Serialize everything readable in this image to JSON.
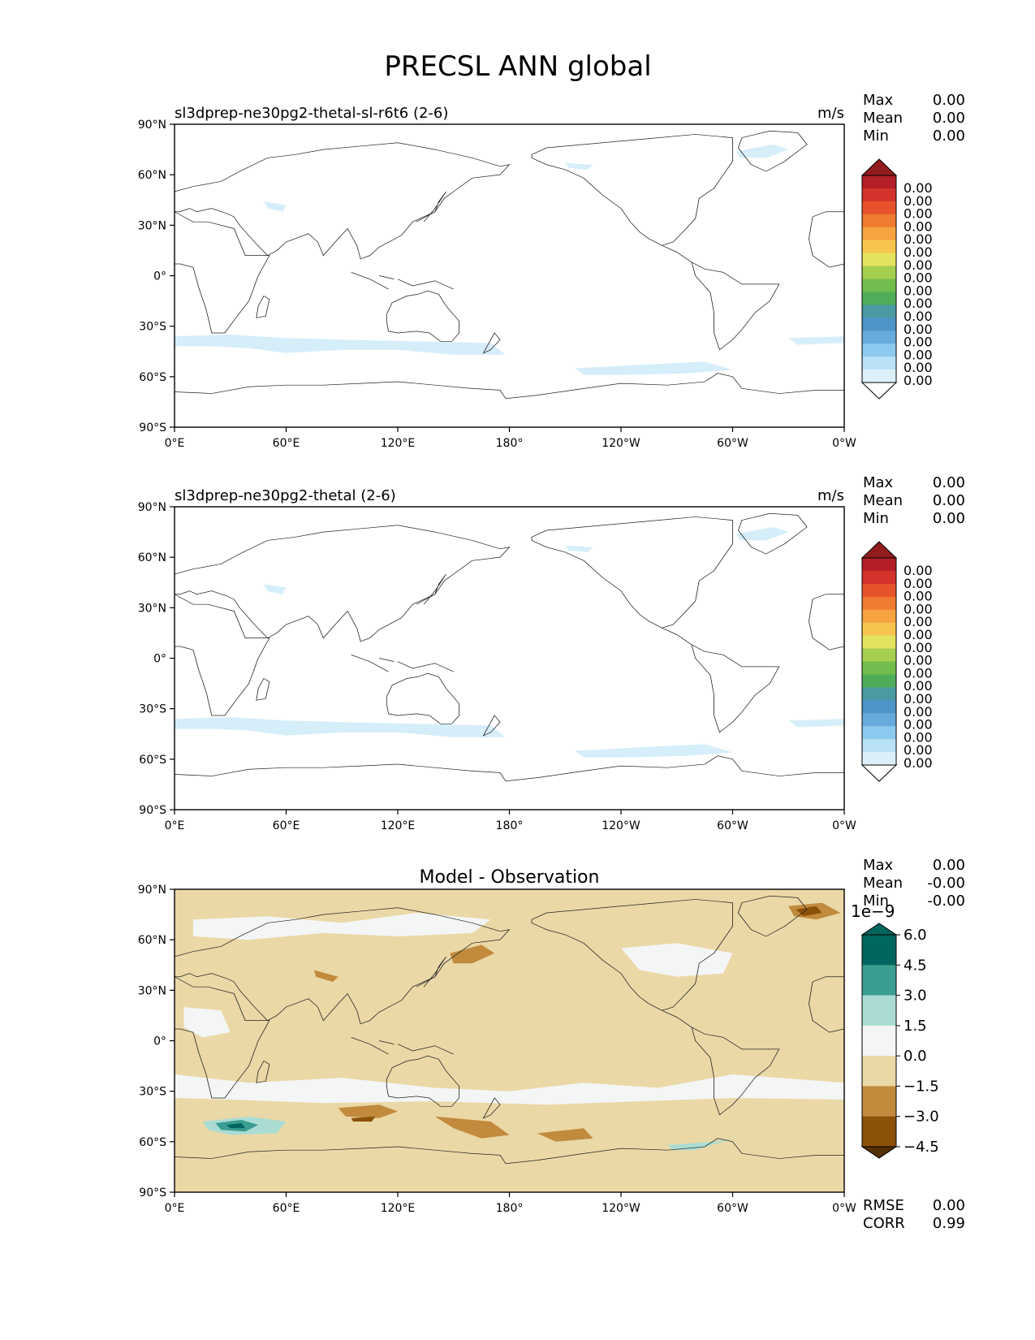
{
  "title": "PRECSL ANN global",
  "lon_ticks": [
    "0°E",
    "60°E",
    "120°E",
    "180°",
    "120°W",
    "60°W",
    "0°W"
  ],
  "lat_ticks": [
    "90°N",
    "60°N",
    "30°N",
    "0°",
    "30°S",
    "60°S",
    "90°S"
  ],
  "stat_labels": {
    "max": "Max",
    "mean": "Mean",
    "min": "Min",
    "rmse": "RMSE",
    "corr": "CORR"
  },
  "panels": [
    {
      "title_left": "sl3dprep-ne30pg2-thetal-sl-r6t6 (2-6)",
      "units": "m/s",
      "stats": {
        "max": "0.00",
        "mean": "0.00",
        "min": "0.00"
      },
      "colorbar": {
        "labels": [
          "0.00",
          "0.00",
          "0.00",
          "0.00",
          "0.00",
          "0.00",
          "0.00",
          "0.00",
          "0.00",
          "0.00",
          "0.00",
          "0.00",
          "0.00",
          "0.00",
          "0.00",
          "0.00"
        ],
        "colors": [
          "#ffffff",
          "#dcf0fa",
          "#b9e1f6",
          "#8cc9ee",
          "#66abdb",
          "#4d95c9",
          "#4a9aa2",
          "#4fad5a",
          "#73bd4e",
          "#a6cf4f",
          "#e3e25e",
          "#f7c54e",
          "#f6a340",
          "#ef7b30",
          "#e6532b",
          "#d4322c",
          "#b41f27",
          "#921b1d"
        ]
      }
    },
    {
      "title_left": "sl3dprep-ne30pg2-thetal (2-6)",
      "units": "m/s",
      "stats": {
        "max": "0.00",
        "mean": "0.00",
        "min": "0.00"
      },
      "colorbar": {
        "labels": [
          "0.00",
          "0.00",
          "0.00",
          "0.00",
          "0.00",
          "0.00",
          "0.00",
          "0.00",
          "0.00",
          "0.00",
          "0.00",
          "0.00",
          "0.00",
          "0.00",
          "0.00",
          "0.00"
        ],
        "colors": [
          "#ffffff",
          "#dcf0fa",
          "#b9e1f6",
          "#8cc9ee",
          "#66abdb",
          "#4d95c9",
          "#4a9aa2",
          "#4fad5a",
          "#73bd4e",
          "#a6cf4f",
          "#e3e25e",
          "#f7c54e",
          "#f6a340",
          "#ef7b30",
          "#e6532b",
          "#d4322c",
          "#b41f27",
          "#921b1d"
        ]
      }
    },
    {
      "title_center": "Model - Observation",
      "stats": {
        "max": "0.00",
        "mean": "-0.00",
        "min": "-0.00",
        "rmse": "0.00",
        "corr": "0.99"
      },
      "colorbar": {
        "exponent": "1e−9",
        "labels": [
          "6.0",
          "4.5",
          "3.0",
          "1.5",
          "0.0",
          "−1.5",
          "−3.0",
          "−4.5"
        ],
        "colors": [
          "#543005",
          "#8c5109",
          "#c18a3d",
          "#ead8a6",
          "#f4f5f5",
          "#abdcd3",
          "#3c9d91",
          "#01665e"
        ]
      }
    }
  ]
}
